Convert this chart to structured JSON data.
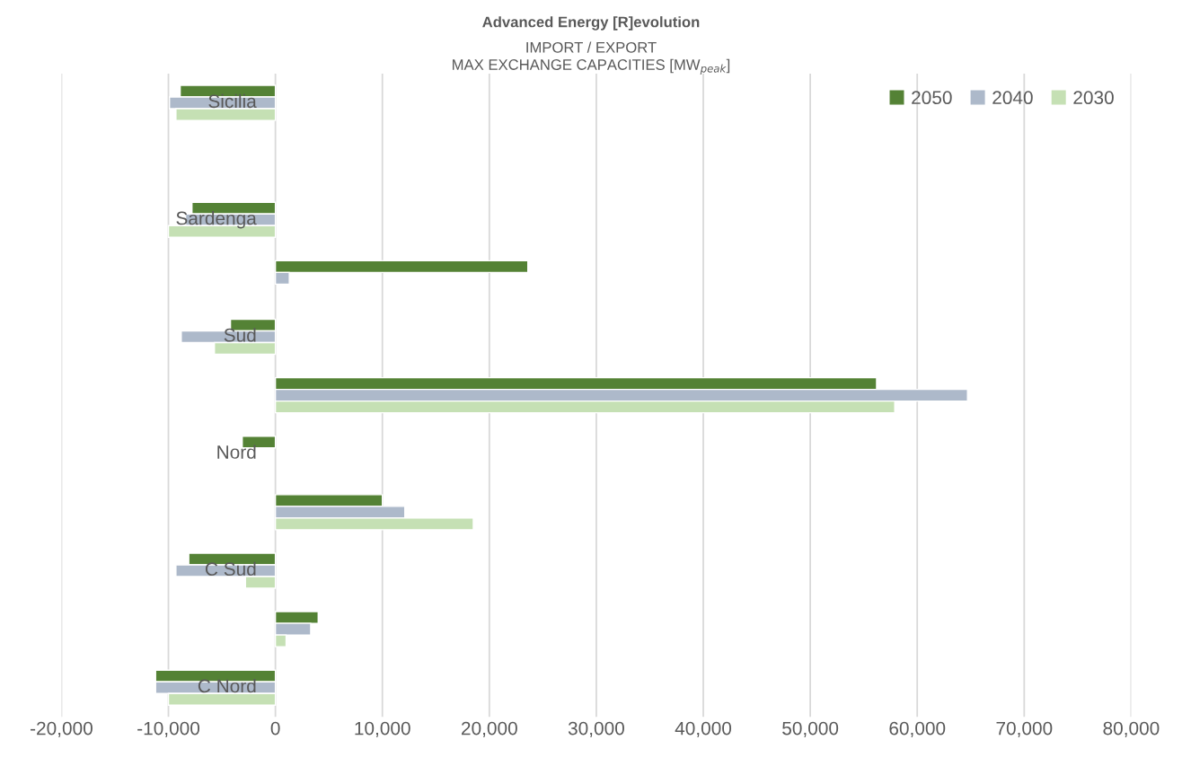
{
  "chart_data": {
    "type": "bar",
    "orientation": "horizontal",
    "title": "Advanced Energy [R]evolution",
    "subtitle": "IMPORT / EXPORT\nMAX EXCHANGE CAPACITIES [MW$_{peak}$]",
    "categories": [
      "Sicilia",
      null,
      "Sardenga",
      null,
      "Sud",
      null,
      "Nord",
      null,
      "C Sud",
      null,
      "C Nord"
    ],
    "series": [
      {
        "name": "2050",
        "color": "#548235",
        "values": [
          -8900,
          null,
          -7800,
          23600,
          -4200,
          56200,
          -3100,
          10000,
          -8100,
          4000,
          -11200
        ]
      },
      {
        "name": "2040",
        "color": "#adb9ca",
        "values": [
          -9900,
          null,
          -8400,
          1300,
          -8800,
          64700,
          null,
          12100,
          -9300,
          3300,
          -11200
        ]
      },
      {
        "name": "2030",
        "color": "#c5e0b4",
        "values": [
          -9300,
          null,
          -10000,
          null,
          -5700,
          57900,
          null,
          18500,
          -2800,
          1000,
          -10000
        ]
      }
    ],
    "xlim": [
      -20000,
      80000
    ],
    "xticks": [
      {
        "value": -20000,
        "label": "-20,000"
      },
      {
        "value": -10000,
        "label": "-10,000"
      },
      0,
      {
        "value": 10000,
        "label": "10,000"
      },
      {
        "value": 20000,
        "label": "20,000"
      },
      {
        "value": 30000,
        "label": "30,000"
      },
      {
        "value": 40000,
        "label": "40,000"
      },
      {
        "value": 50000,
        "label": "50,000"
      },
      {
        "value": 60000,
        "label": "60,000"
      },
      {
        "value": 70000,
        "label": "70,000"
      },
      {
        "value": 80000,
        "label": "80,000"
      }
    ],
    "grid": "x",
    "legend": "top right"
  }
}
